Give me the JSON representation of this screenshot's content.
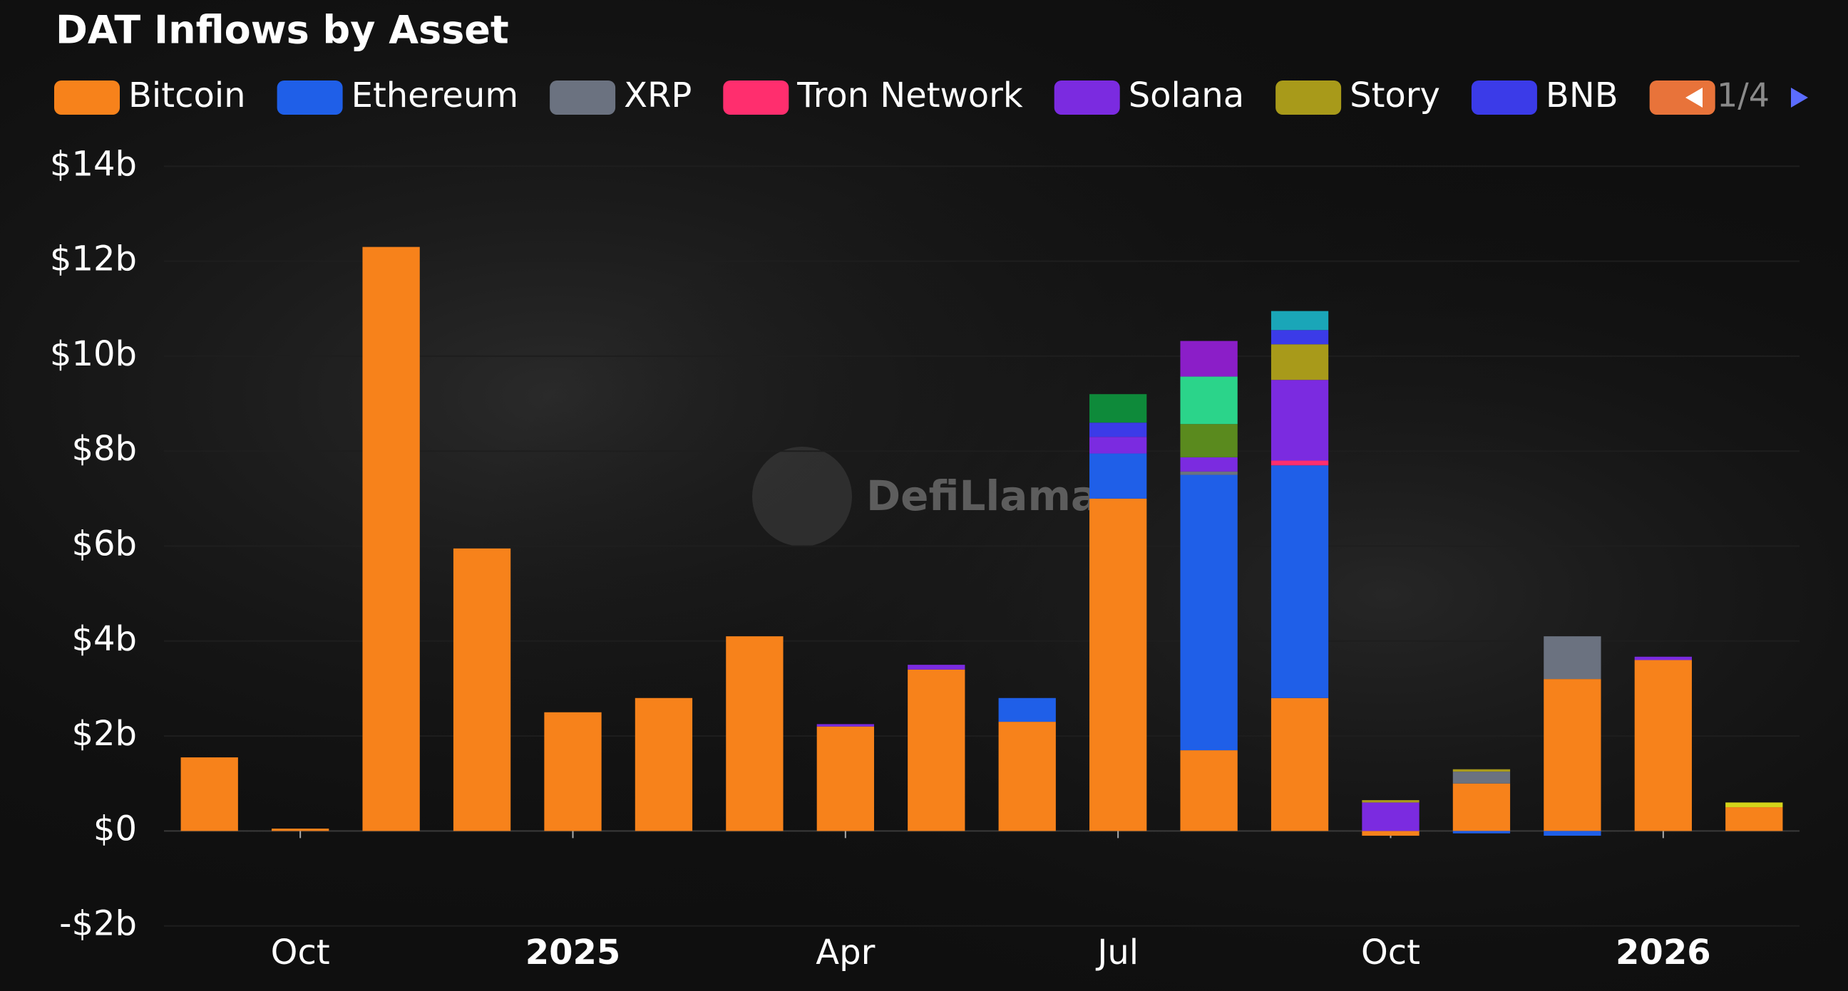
{
  "chart_data": {
    "type": "bar",
    "stacked": true,
    "title": "DAT Inflows by Asset",
    "watermark": "DefiLlama",
    "legend_page": "1/4",
    "categories": [
      null,
      "Oct",
      null,
      null,
      "2025",
      null,
      null,
      "Apr",
      null,
      null,
      "Jul",
      null,
      null,
      "Oct",
      null,
      null,
      "2026",
      null
    ],
    "ylim": [
      -2.5,
      14.5
    ],
    "yticks": [
      {
        "value": -2,
        "label": "-$2b"
      },
      {
        "value": 0,
        "label": "$0"
      },
      {
        "value": 2,
        "label": "$2b"
      },
      {
        "value": 4,
        "label": "$4b"
      },
      {
        "value": 6,
        "label": "$6b"
      },
      {
        "value": 8,
        "label": "$8b"
      },
      {
        "value": 10,
        "label": "$10b"
      },
      {
        "value": 12,
        "label": "$12b"
      },
      {
        "value": 14,
        "label": "$14b"
      }
    ],
    "grid": true,
    "series": [
      {
        "name": "Bitcoin",
        "color": "#f7821b",
        "values": [
          1.55,
          0.05,
          12.3,
          5.95,
          2.5,
          2.8,
          4.1,
          2.2,
          3.4,
          2.3,
          7.0,
          1.7,
          2.8,
          -0.1,
          1.0,
          3.2,
          3.6,
          0.5
        ]
      },
      {
        "name": "Ethereum",
        "color": "#1f5fe8",
        "values": [
          null,
          null,
          null,
          null,
          null,
          null,
          null,
          null,
          null,
          0.5,
          0.95,
          5.8,
          4.9,
          null,
          -0.05,
          -0.1,
          null,
          null
        ]
      },
      {
        "name": "XRP",
        "color": "#6b7280",
        "values": [
          null,
          null,
          null,
          null,
          null,
          null,
          null,
          null,
          null,
          null,
          null,
          0.07,
          null,
          null,
          0.25,
          0.9,
          null,
          null
        ]
      },
      {
        "name": "Tron Network",
        "color": "#ff2e6e",
        "values": [
          null,
          null,
          null,
          null,
          null,
          null,
          null,
          null,
          null,
          null,
          null,
          null,
          0.1,
          null,
          null,
          null,
          null,
          null
        ]
      },
      {
        "name": "Solana",
        "color": "#7b2be0",
        "values": [
          null,
          null,
          null,
          null,
          null,
          null,
          null,
          0.05,
          0.1,
          null,
          0.35,
          0.3,
          1.7,
          0.6,
          null,
          null,
          0.07,
          null
        ]
      },
      {
        "name": "Story",
        "color": "#a89a1a",
        "values": [
          null,
          null,
          null,
          null,
          null,
          null,
          null,
          null,
          null,
          null,
          null,
          null,
          0.75,
          0.05,
          0.05,
          null,
          null,
          null
        ]
      },
      {
        "name": "BNB",
        "color": "#3b3be8",
        "values": [
          null,
          null,
          null,
          null,
          null,
          null,
          null,
          null,
          null,
          null,
          0.3,
          null,
          0.3,
          null,
          null,
          null,
          null,
          null
        ]
      },
      {
        "color": "#e8733a",
        "values": [
          null,
          null,
          null,
          null,
          null,
          null,
          null,
          null,
          null,
          null,
          null,
          null,
          null,
          null,
          null,
          null,
          null,
          null
        ]
      },
      {
        "color": "#0e8a3a",
        "values": [
          null,
          null,
          null,
          null,
          null,
          null,
          null,
          null,
          null,
          null,
          0.6,
          null,
          null,
          null,
          null,
          null,
          null,
          null
        ]
      },
      {
        "color": "#5a8a1e",
        "values": [
          null,
          null,
          null,
          null,
          null,
          null,
          null,
          null,
          null,
          null,
          null,
          0.7,
          null,
          null,
          null,
          null,
          null,
          null
        ]
      },
      {
        "color": "#2bd48a",
        "values": [
          null,
          null,
          null,
          null,
          null,
          null,
          null,
          null,
          null,
          null,
          null,
          1.0,
          null,
          null,
          null,
          null,
          null,
          null
        ]
      },
      {
        "color": "#8b1ec8",
        "values": [
          null,
          null,
          null,
          null,
          null,
          null,
          null,
          null,
          null,
          null,
          null,
          0.75,
          null,
          null,
          null,
          null,
          null,
          null
        ]
      },
      {
        "color": "#1aa6b8",
        "values": [
          null,
          null,
          null,
          null,
          null,
          null,
          null,
          null,
          null,
          null,
          null,
          null,
          0.4,
          null,
          null,
          null,
          null,
          null
        ]
      },
      {
        "color": "#d4d41a",
        "values": [
          null,
          null,
          null,
          null,
          null,
          null,
          null,
          null,
          null,
          null,
          null,
          null,
          null,
          null,
          null,
          null,
          null,
          0.1
        ]
      }
    ]
  }
}
